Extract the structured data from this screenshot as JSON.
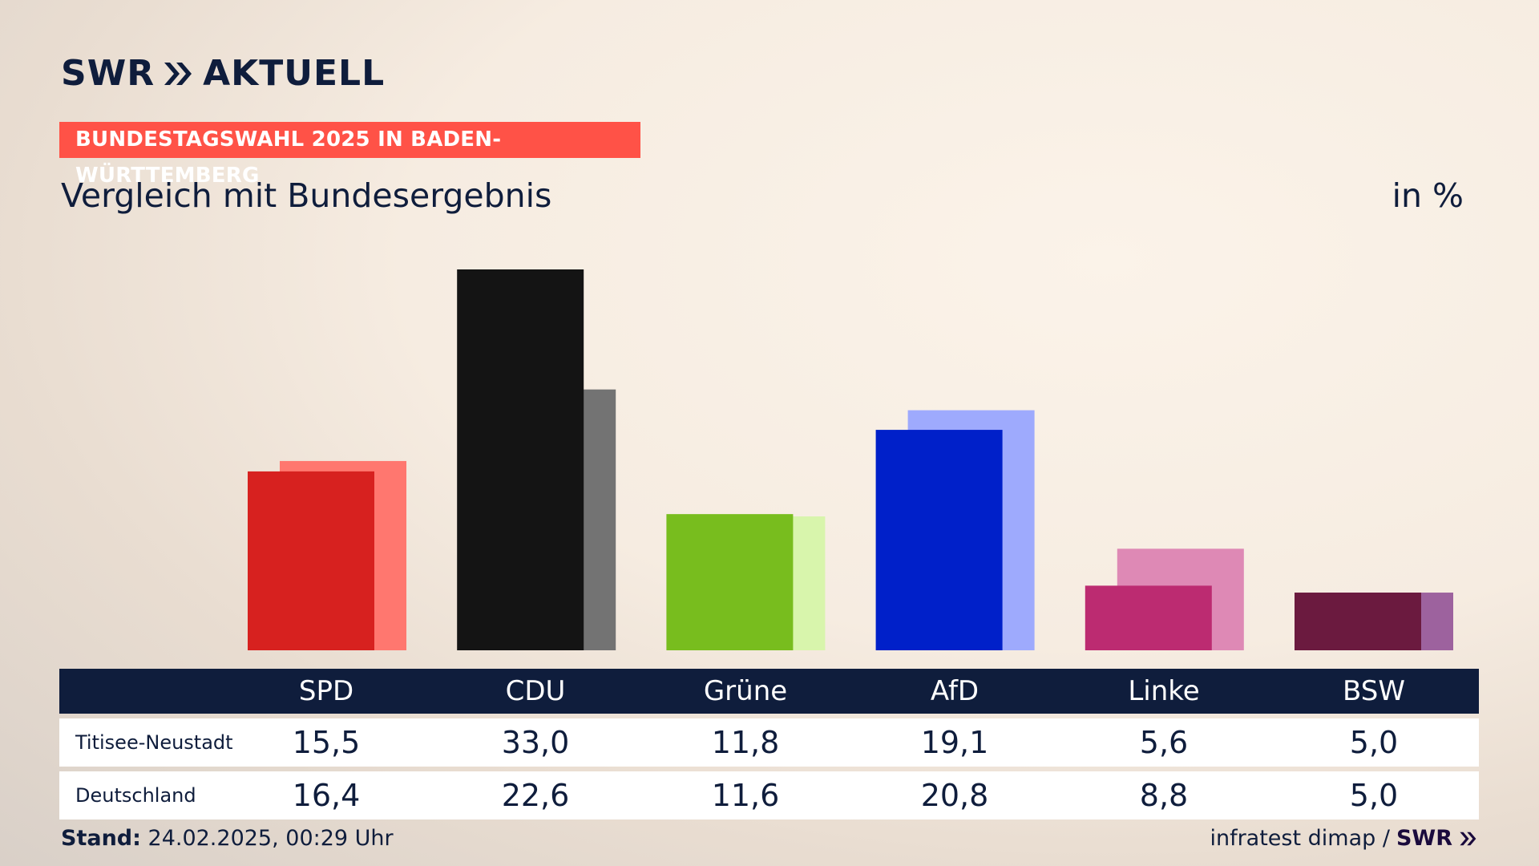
{
  "header": {
    "logo_text": "SWR",
    "logo_suffix": "AKTUELL",
    "tag": "BUNDESTAGSWAHL 2025 IN BADEN-WÜRTTEMBERG",
    "subtitle": "Vergleich mit Bundesergebnis",
    "unit": "in %"
  },
  "chart_data": {
    "type": "bar",
    "categories": [
      "SPD",
      "CDU",
      "Grüne",
      "AfD",
      "Linke",
      "BSW"
    ],
    "series": [
      {
        "name": "Titisee-Neustadt",
        "values": [
          15.5,
          33.0,
          11.8,
          19.1,
          5.6,
          5.0
        ],
        "colors": [
          "#d7211f",
          "#141414",
          "#78bd1e",
          "#0020c9",
          "#bc2b71",
          "#6b1a3f"
        ]
      },
      {
        "name": "Deutschland",
        "values": [
          16.4,
          22.6,
          11.6,
          20.8,
          8.8,
          5.0
        ],
        "colors": [
          "#ff776f",
          "#737373",
          "#d8f5ac",
          "#9eaafd",
          "#de89b5",
          "#9d629e"
        ]
      }
    ],
    "ylim": [
      0,
      33.0
    ],
    "grid": false,
    "legend": "none"
  },
  "table": {
    "headers": [
      "SPD",
      "CDU",
      "Grüne",
      "AfD",
      "Linke",
      "BSW"
    ],
    "rows": [
      {
        "label": "Titisee-Neustadt",
        "values": [
          "15,5",
          "33,0",
          "11,8",
          "19,1",
          "5,6",
          "5,0"
        ]
      },
      {
        "label": "Deutschland",
        "values": [
          "16,4",
          "22,6",
          "11,6",
          "20,8",
          "8,8",
          "5,0"
        ]
      }
    ]
  },
  "footer": {
    "stand_label": "Stand:",
    "stand_value": "24.02.2025, 00:29 Uhr",
    "source": "infratest dimap /",
    "source_logo": "SWR"
  }
}
